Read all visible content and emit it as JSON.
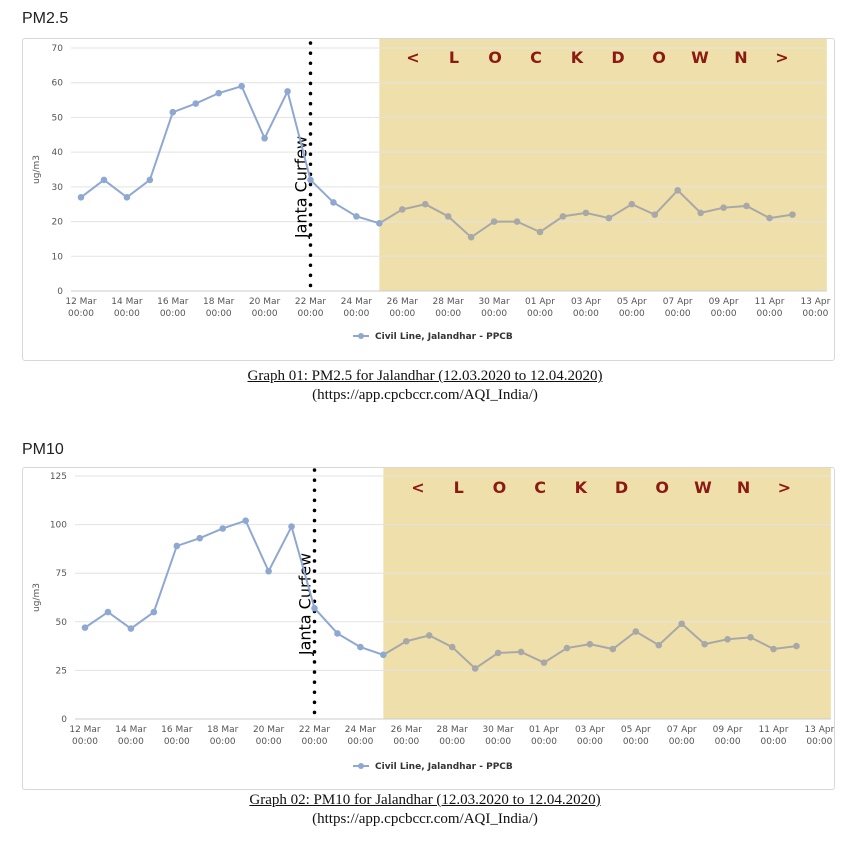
{
  "colors": {
    "series": "#8fa8d1",
    "series_lockdown": "#a8a8a8",
    "lockdown_band": "#efe0ab",
    "lockdown_text": "#8b1a12",
    "grid": "#e3e3e3",
    "axis_text": "#555555"
  },
  "chart_data": [
    {
      "type": "line",
      "title": "PM2.5",
      "ylabel": "ug/m3",
      "ylim": [
        0,
        70
      ],
      "yticks": [
        0,
        10,
        20,
        30,
        40,
        50,
        60,
        70
      ],
      "x_ticks": [
        {
          "day": 0,
          "l1": "12 Mar",
          "l2": "00:00"
        },
        {
          "day": 2,
          "l1": "14 Mar",
          "l2": "00:00"
        },
        {
          "day": 4,
          "l1": "16 Mar",
          "l2": "00:00"
        },
        {
          "day": 6,
          "l1": "18 Mar",
          "l2": "00:00"
        },
        {
          "day": 8,
          "l1": "20 Mar",
          "l2": "00:00"
        },
        {
          "day": 10,
          "l1": "22 Mar",
          "l2": "00:00"
        },
        {
          "day": 12,
          "l1": "24 Mar",
          "l2": "00:00"
        },
        {
          "day": 14,
          "l1": "26 Mar",
          "l2": "00:00"
        },
        {
          "day": 16,
          "l1": "28 Mar",
          "l2": "00:00"
        },
        {
          "day": 18,
          "l1": "30 Mar",
          "l2": "00:00"
        },
        {
          "day": 20,
          "l1": "01 Apr",
          "l2": "00:00"
        },
        {
          "day": 22,
          "l1": "03 Apr",
          "l2": "00:00"
        },
        {
          "day": 24,
          "l1": "05 Apr",
          "l2": "00:00"
        },
        {
          "day": 26,
          "l1": "07 Apr",
          "l2": "00:00"
        },
        {
          "day": 28,
          "l1": "09 Apr",
          "l2": "00:00"
        },
        {
          "day": 30,
          "l1": "11 Apr",
          "l2": "00:00"
        },
        {
          "day": 32,
          "l1": "13 Apr",
          "l2": "00:00"
        }
      ],
      "series": [
        {
          "name": "Civil Line, Jalandhar - PPCB",
          "x_days": [
            0,
            1,
            2,
            3,
            4,
            5,
            6,
            7,
            8,
            9,
            10,
            11,
            12,
            13,
            14,
            15,
            16,
            17,
            18,
            19,
            20,
            21,
            22,
            23,
            24,
            25,
            26,
            27,
            28,
            29,
            30,
            31
          ],
          "values": [
            27,
            32,
            27,
            32,
            51.5,
            54,
            57,
            59,
            44,
            57.5,
            32,
            25.5,
            21.5,
            19.5,
            23.5,
            25,
            21.5,
            15.5,
            20,
            20,
            17,
            21.5,
            22.5,
            21,
            25,
            22,
            29,
            22.5,
            24,
            24.5,
            21,
            22
          ]
        }
      ],
      "janta_curfew": {
        "day": 10,
        "label": "Janta Curfew"
      },
      "lockdown": {
        "start_day": 13,
        "end_day": 32.5,
        "label": [
          "<",
          "L",
          "O",
          "C",
          "K",
          "D",
          "O",
          "W",
          "N",
          ">"
        ]
      },
      "caption": "Graph 01: PM2.5 for Jalandhar (12.03.2020 to 12.04.2020)",
      "source": "(https://app.cpcbccr.com/AQI_India/)"
    },
    {
      "type": "line",
      "title": "PM10",
      "ylabel": "ug/m3",
      "ylim": [
        0,
        125
      ],
      "yticks": [
        0,
        25,
        50,
        75,
        100,
        125
      ],
      "x_ticks": [
        {
          "day": 0,
          "l1": "12 Mar",
          "l2": "00:00"
        },
        {
          "day": 2,
          "l1": "14 Mar",
          "l2": "00:00"
        },
        {
          "day": 4,
          "l1": "16 Mar",
          "l2": "00:00"
        },
        {
          "day": 6,
          "l1": "18 Mar",
          "l2": "00:00"
        },
        {
          "day": 8,
          "l1": "20 Mar",
          "l2": "00:00"
        },
        {
          "day": 10,
          "l1": "22 Mar",
          "l2": "00:00"
        },
        {
          "day": 12,
          "l1": "24 Mar",
          "l2": "00:00"
        },
        {
          "day": 14,
          "l1": "26 Mar",
          "l2": "00:00"
        },
        {
          "day": 16,
          "l1": "28 Mar",
          "l2": "00:00"
        },
        {
          "day": 18,
          "l1": "30 Mar",
          "l2": "00:00"
        },
        {
          "day": 20,
          "l1": "01 Apr",
          "l2": "00:00"
        },
        {
          "day": 22,
          "l1": "03 Apr",
          "l2": "00:00"
        },
        {
          "day": 24,
          "l1": "05 Apr",
          "l2": "00:00"
        },
        {
          "day": 26,
          "l1": "07 Apr",
          "l2": "00:00"
        },
        {
          "day": 28,
          "l1": "09 Apr",
          "l2": "00:00"
        },
        {
          "day": 30,
          "l1": "11 Apr",
          "l2": "00:00"
        },
        {
          "day": 32,
          "l1": "13 Apr",
          "l2": "00:00"
        }
      ],
      "series": [
        {
          "name": "Civil Line, Jalandhar - PPCB",
          "x_days": [
            0,
            1,
            2,
            3,
            4,
            5,
            6,
            7,
            8,
            9,
            10,
            11,
            12,
            13,
            14,
            15,
            16,
            17,
            18,
            19,
            20,
            21,
            22,
            23,
            24,
            25,
            26,
            27,
            28,
            29,
            30,
            31
          ],
          "values": [
            47,
            55,
            46.5,
            55,
            89,
            93,
            98,
            102,
            76,
            99,
            57,
            44,
            37,
            33,
            40,
            43,
            37,
            26,
            34,
            34.5,
            29,
            36.5,
            38.5,
            36,
            45,
            38,
            49,
            38.5,
            41,
            42,
            36,
            37.5
          ]
        }
      ],
      "janta_curfew": {
        "day": 10,
        "label": "Janta Curfew"
      },
      "lockdown": {
        "start_day": 13,
        "end_day": 32.5,
        "label": [
          "<",
          "L",
          "O",
          "C",
          "K",
          "D",
          "O",
          "W",
          "N",
          ">"
        ]
      },
      "caption": "Graph 02: PM10 for Jalandhar (12.03.2020 to 12.04.2020)",
      "source": "(https://app.cpcbccr.com/AQI_India/)"
    }
  ]
}
